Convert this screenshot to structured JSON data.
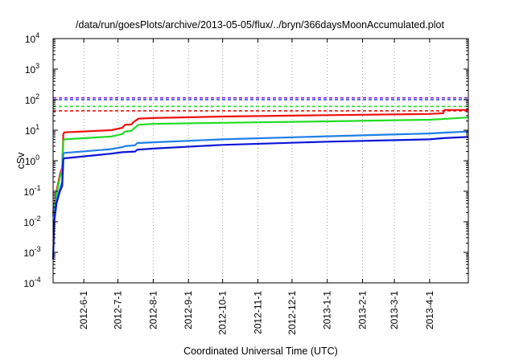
{
  "chart_data": {
    "type": "line",
    "title": "/data/run/goesPlots/archive/2013-05-05/flux/../bryn/366daysMoonAccumulated.plot",
    "xlabel": "Coordinated Universal Time (UTC)",
    "ylabel": "cSv",
    "y_scale": "log",
    "ylim": [
      0.0001,
      10000
    ],
    "xlim": [
      "2012-05-05",
      "2013-05-05"
    ],
    "grid": "vertical dotted at month ticks",
    "y_ticks": [
      {
        "base": "10",
        "exp": "-4",
        "value": 0.0001
      },
      {
        "base": "10",
        "exp": "-3",
        "value": 0.001
      },
      {
        "base": "10",
        "exp": "-2",
        "value": 0.01
      },
      {
        "base": "10",
        "exp": "-1",
        "value": 0.1
      },
      {
        "base": "10",
        "exp": "0",
        "value": 1
      },
      {
        "base": "10",
        "exp": "1",
        "value": 10
      },
      {
        "base": "10",
        "exp": "2",
        "value": 100
      },
      {
        "base": "10",
        "exp": "3",
        "value": 1000
      },
      {
        "base": "10",
        "exp": "4",
        "value": 10000
      }
    ],
    "x_ticks": [
      {
        "label": "2012-6-1",
        "date": "2012-06-01"
      },
      {
        "label": "2012-7-1",
        "date": "2012-07-01"
      },
      {
        "label": "2012-8-1",
        "date": "2012-08-01"
      },
      {
        "label": "2012-9-1",
        "date": "2012-09-01"
      },
      {
        "label": "2012-10-1",
        "date": "2012-10-01"
      },
      {
        "label": "2012-11-1",
        "date": "2012-11-01"
      },
      {
        "label": "2012-12-1",
        "date": "2012-12-01"
      },
      {
        "label": "2013-1-1",
        "date": "2013-01-01"
      },
      {
        "label": "2013-2-1",
        "date": "2013-02-01"
      },
      {
        "label": "2013-3-1",
        "date": "2013-03-01"
      },
      {
        "label": "2013-4-1",
        "date": "2013-04-01"
      }
    ],
    "thresholds": [
      {
        "value": 115,
        "color": "#8b2be2"
      },
      {
        "value": 100,
        "color": "#1f3fe6"
      },
      {
        "value": 60,
        "color": "#22dd22"
      },
      {
        "value": 43,
        "color": "#ee1111"
      }
    ],
    "series": [
      {
        "color": "#ee1111",
        "points": [
          [
            "2012-05-05",
            0.02
          ],
          [
            "2012-05-08",
            0.1
          ],
          [
            "2012-05-11",
            0.35
          ],
          [
            "2012-05-13",
            0.6
          ],
          [
            "2012-05-14",
            7.5
          ],
          [
            "2012-05-15",
            8.5
          ],
          [
            "2012-06-25",
            10
          ],
          [
            "2012-07-05",
            12
          ],
          [
            "2012-07-07",
            15
          ],
          [
            "2012-07-13",
            15.5
          ],
          [
            "2012-07-15",
            19
          ],
          [
            "2012-07-17",
            21
          ],
          [
            "2012-07-19",
            24
          ],
          [
            "2012-07-31",
            25
          ],
          [
            "2012-10-01",
            28
          ],
          [
            "2013-01-01",
            31
          ],
          [
            "2013-04-01",
            34
          ],
          [
            "2013-04-13",
            36
          ],
          [
            "2013-04-14",
            46
          ],
          [
            "2013-05-05",
            46
          ]
        ]
      },
      {
        "color": "#22dd22",
        "points": [
          [
            "2012-05-05",
            0.018
          ],
          [
            "2012-05-08",
            0.08
          ],
          [
            "2012-05-11",
            0.28
          ],
          [
            "2012-05-13",
            0.5
          ],
          [
            "2012-05-14",
            4.5
          ],
          [
            "2012-05-15",
            5
          ],
          [
            "2012-06-25",
            6.2
          ],
          [
            "2012-07-05",
            7.5
          ],
          [
            "2012-07-07",
            9
          ],
          [
            "2012-07-13",
            9.5
          ],
          [
            "2012-07-15",
            11.5
          ],
          [
            "2012-07-17",
            13
          ],
          [
            "2012-07-19",
            15
          ],
          [
            "2012-07-31",
            16
          ],
          [
            "2012-10-01",
            17.5
          ],
          [
            "2013-01-01",
            19.5
          ],
          [
            "2013-04-01",
            22
          ],
          [
            "2013-05-05",
            26
          ]
        ]
      },
      {
        "color": "#1e7fe8",
        "points": [
          [
            "2012-05-05",
            0.015
          ],
          [
            "2012-05-08",
            0.05
          ],
          [
            "2012-05-11",
            0.12
          ],
          [
            "2012-05-13",
            0.2
          ],
          [
            "2012-05-14",
            1.7
          ],
          [
            "2012-05-15",
            1.8
          ],
          [
            "2012-06-25",
            2.4
          ],
          [
            "2012-07-05",
            2.8
          ],
          [
            "2012-07-07",
            3
          ],
          [
            "2012-07-16",
            3.2
          ],
          [
            "2012-07-18",
            3.8
          ],
          [
            "2012-08-01",
            4
          ],
          [
            "2012-10-01",
            5
          ],
          [
            "2013-01-01",
            6.3
          ],
          [
            "2013-04-01",
            7.8
          ],
          [
            "2013-04-13",
            8.3
          ],
          [
            "2013-05-05",
            9
          ]
        ]
      },
      {
        "color": "#0a14d8",
        "points": [
          [
            "2012-05-05",
            0.0006
          ],
          [
            "2012-05-06",
            0.01
          ],
          [
            "2012-05-08",
            0.04
          ],
          [
            "2012-05-11",
            0.1
          ],
          [
            "2012-05-13",
            0.15
          ],
          [
            "2012-05-14",
            1.1
          ],
          [
            "2012-05-15",
            1.2
          ],
          [
            "2012-06-25",
            1.7
          ],
          [
            "2012-07-05",
            1.9
          ],
          [
            "2012-07-16",
            2
          ],
          [
            "2012-07-18",
            2.3
          ],
          [
            "2012-08-01",
            2.5
          ],
          [
            "2012-10-01",
            3.3
          ],
          [
            "2013-01-01",
            4.2
          ],
          [
            "2013-04-01",
            5
          ],
          [
            "2013-04-13",
            5.5
          ],
          [
            "2013-05-05",
            6
          ]
        ]
      }
    ]
  }
}
